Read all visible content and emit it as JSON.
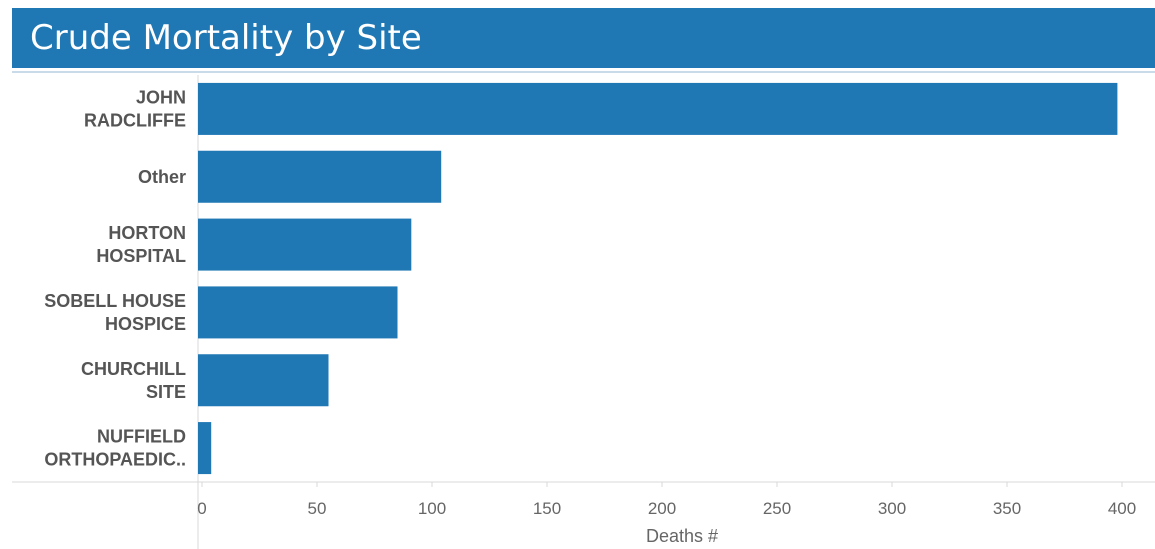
{
  "chart_data": {
    "type": "bar",
    "orientation": "horizontal",
    "title": "Crude Mortality by Site",
    "xlabel": "Deaths #",
    "ylabel": "",
    "categories": [
      [
        "JOHN",
        "RADCLIFFE"
      ],
      [
        "Other"
      ],
      [
        "HORTON",
        "HOSPITAL"
      ],
      [
        "SOBELL HOUSE",
        "HOSPICE"
      ],
      [
        "CHURCHILL",
        "SITE"
      ],
      [
        "NUFFIELD",
        "ORTHOPAEDIC.."
      ]
    ],
    "values": [
      398,
      104,
      91,
      85,
      55,
      4
    ],
    "xlim": [
      0,
      400
    ],
    "xticks": [
      "0",
      "50",
      "100",
      "150",
      "200",
      "250",
      "300",
      "350",
      "400"
    ],
    "bar_color": "#1f77b4",
    "grid": false
  }
}
